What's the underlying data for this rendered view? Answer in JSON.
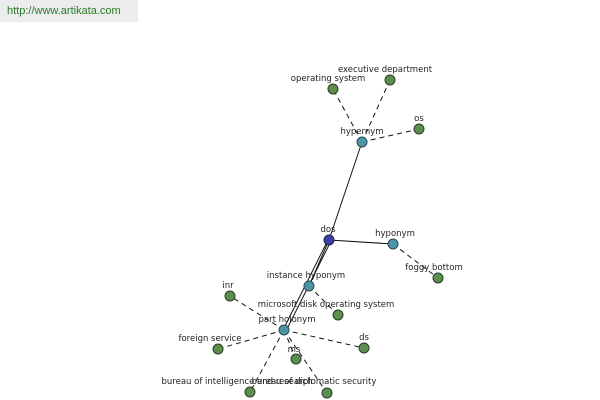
{
  "header": {
    "url": "http://www.artikata.com"
  },
  "nodes": [
    {
      "label": "dos"
    },
    {
      "label": "hypernym"
    },
    {
      "label": "operating system"
    },
    {
      "label": "executive department"
    },
    {
      "label": "os"
    },
    {
      "label": "hyponym"
    },
    {
      "label": "foggy bottom"
    },
    {
      "label": "instance hyponym"
    },
    {
      "label": "microsoft disk operating system"
    },
    {
      "label": "part holonym"
    },
    {
      "label": "inr"
    },
    {
      "label": "foreign service"
    },
    {
      "label": "bureau of intelligence and research"
    },
    {
      "label": "bureau of diplomatic security"
    },
    {
      "label": "ms"
    },
    {
      "label": "ds"
    }
  ]
}
